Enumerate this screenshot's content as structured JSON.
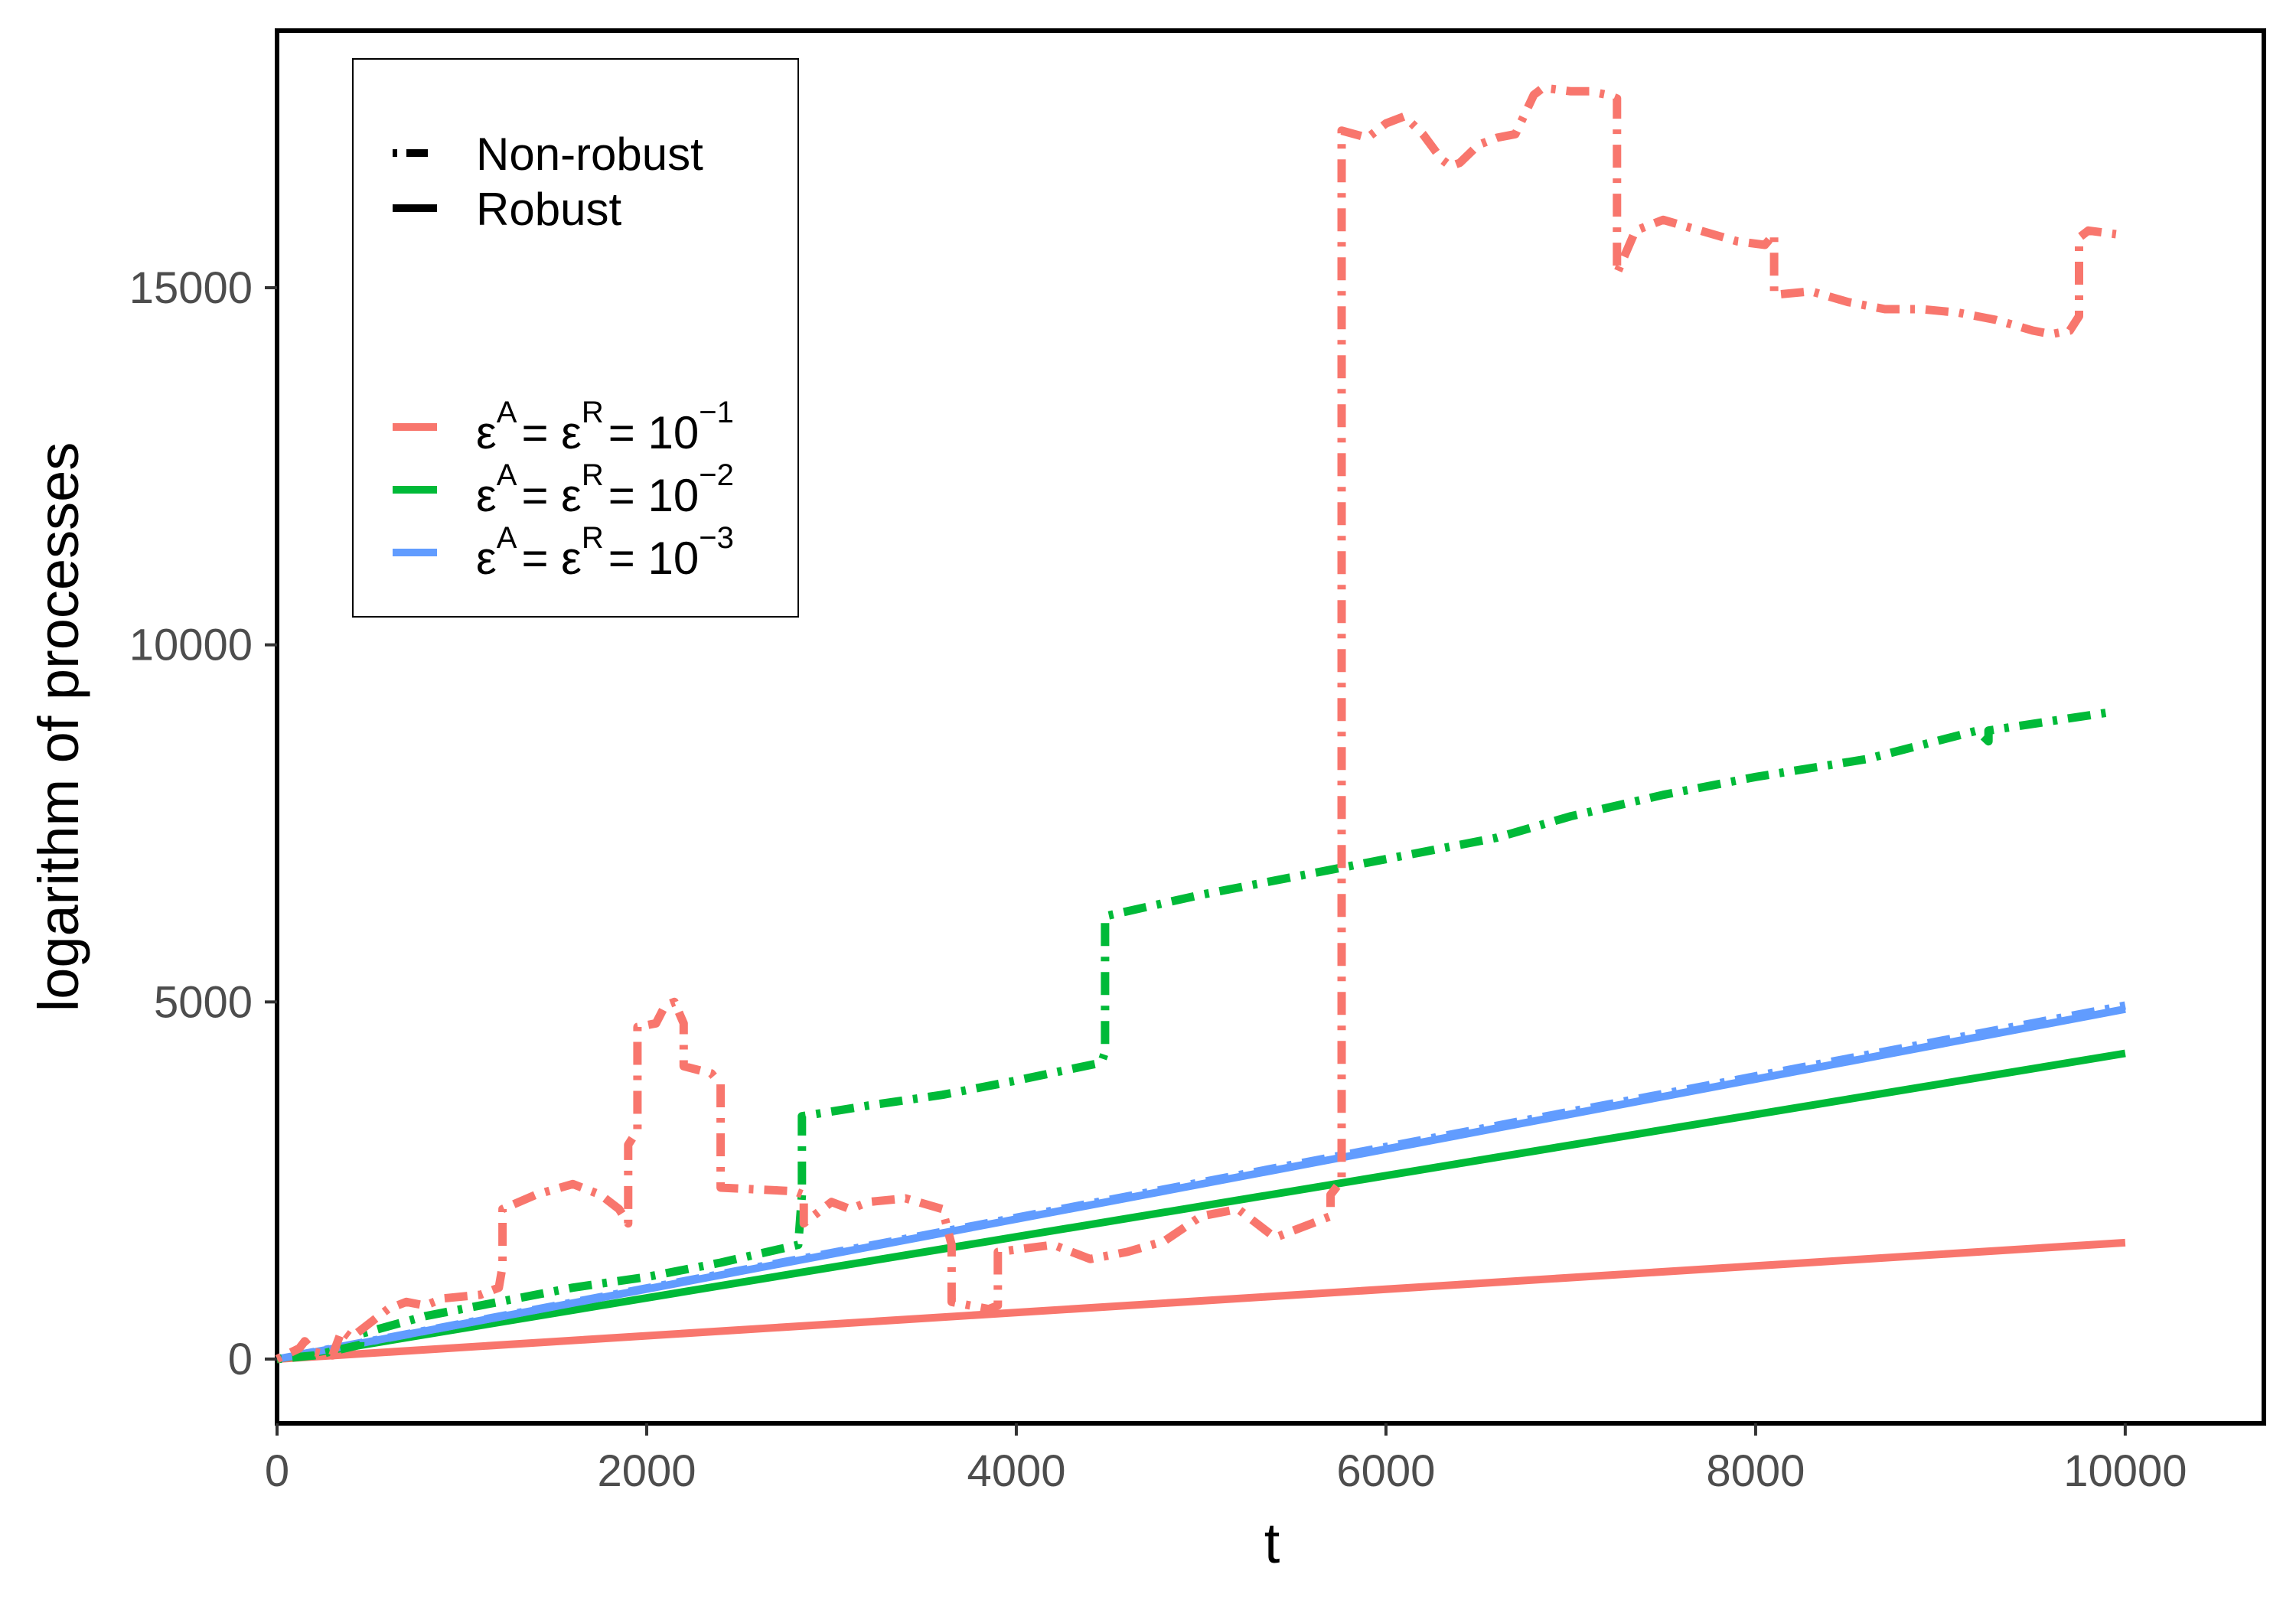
{
  "chart_data": {
    "type": "line",
    "title": "",
    "xlabel": "t",
    "ylabel": "logarithm of processes",
    "xlim": [
      0,
      10750
    ],
    "ylim": [
      -900,
      18600
    ],
    "x_ticks": [
      0,
      2000,
      4000,
      6000,
      8000,
      10000
    ],
    "y_ticks": [
      0,
      5000,
      10000,
      15000
    ],
    "grid": false,
    "legend": {
      "position": "top-left",
      "linetype_entries": [
        {
          "label": "Non-robust",
          "style": "dotdash"
        },
        {
          "label": "Robust",
          "style": "solid"
        }
      ],
      "color_entries": [
        {
          "label": "εA = εR = 10−1",
          "eps_sup_a": "A",
          "eps_sup_r": "R",
          "base": "10",
          "exponent": "−1",
          "color": "#F8766D"
        },
        {
          "label": "εA = εR = 10−2",
          "eps_sup_a": "A",
          "eps_sup_r": "R",
          "base": "10",
          "exponent": "−2",
          "color": "#00BA38"
        },
        {
          "label": "εA = εR = 10−3",
          "eps_sup_a": "A",
          "eps_sup_r": "R",
          "base": "10",
          "exponent": "−3",
          "color": "#619CFF"
        }
      ]
    },
    "series": [
      {
        "name": "Robust εA = εR = 10−1",
        "epsilon": "10−1",
        "style": "solid",
        "color": "#F8766D",
        "x": [
          0,
          10000
        ],
        "y": [
          0,
          1630
        ]
      },
      {
        "name": "Robust εA = εR = 10−2",
        "epsilon": "10−2",
        "style": "solid",
        "color": "#00BA38",
        "x": [
          0,
          10000
        ],
        "y": [
          0,
          4280
        ]
      },
      {
        "name": "Robust εA = εR = 10−3",
        "epsilon": "10−3",
        "style": "solid",
        "color": "#619CFF",
        "x": [
          0,
          10000
        ],
        "y": [
          0,
          4900
        ]
      },
      {
        "name": "Non-robust εA = εR = 10−3",
        "epsilon": "10−3",
        "style": "dotdash",
        "color": "#619CFF",
        "x": [
          0,
          10000
        ],
        "y": [
          0,
          4950
        ]
      },
      {
        "name": "Non-robust εA = εR = 10−2",
        "epsilon": "10−2",
        "style": "dotdash",
        "color": "#00BA38",
        "x": [
          0,
          200,
          450,
          450,
          800,
          1200,
          1600,
          2000,
          2400,
          2820,
          2840,
          2840,
          3200,
          3600,
          4000,
          4460,
          4480,
          4480,
          5000,
          5600,
          6100,
          6600,
          7000,
          7500,
          8000,
          8600,
          9200,
          9260,
          9260,
          9900
        ],
        "y": [
          0,
          50,
          200,
          350,
          600,
          800,
          1000,
          1150,
          1350,
          1600,
          2300,
          3400,
          3550,
          3700,
          3900,
          4150,
          4300,
          6200,
          6500,
          6800,
          7050,
          7300,
          7600,
          7900,
          8150,
          8400,
          8800,
          8650,
          8800,
          9050
        ]
      },
      {
        "name": "Non-robust εA = εR = 10−1",
        "epsilon": "10−1",
        "style": "dotdash",
        "color": "#F8766D",
        "x": [
          0,
          120,
          150,
          200,
          300,
          350,
          400,
          450,
          550,
          600,
          700,
          800,
          900,
          1100,
          1200,
          1220,
          1220,
          1400,
          1600,
          1750,
          1850,
          1900,
          1900,
          1950,
          1950,
          2050,
          2100,
          2150,
          2200,
          2200,
          2350,
          2400,
          2400,
          2800,
          2850,
          2850,
          3000,
          3100,
          3200,
          3400,
          3600,
          3650,
          3650,
          3850,
          3900,
          3900,
          4200,
          4400,
          4600,
          4800,
          5000,
          5200,
          5400,
          5600,
          5700,
          5700,
          5760,
          5760,
          5900,
          6000,
          6100,
          6200,
          6300,
          6350,
          6400,
          6500,
          6600,
          6700,
          6800,
          6850,
          7000,
          7100,
          7200,
          7250,
          7250,
          7350,
          7500,
          7700,
          7900,
          8050,
          8100,
          8100,
          8300,
          8500,
          8700,
          8900,
          9100,
          9300,
          9500,
          9600,
          9700,
          9750,
          9750,
          9800,
          9950
        ],
        "y": [
          0,
          150,
          250,
          100,
          50,
          400,
          300,
          400,
          600,
          700,
          800,
          750,
          850,
          900,
          1000,
          1300,
          2100,
          2300,
          2450,
          2300,
          2100,
          1900,
          3000,
          3200,
          4650,
          4700,
          4950,
          5000,
          4700,
          4100,
          4000,
          3850,
          2400,
          2350,
          2300,
          1900,
          2200,
          2100,
          2200,
          2250,
          2100,
          1600,
          800,
          700,
          750,
          1500,
          1600,
          1400,
          1500,
          1650,
          2000,
          2100,
          1700,
          1900,
          2000,
          2300,
          2500,
          17200,
          17100,
          17300,
          17400,
          17150,
          16800,
          16700,
          16750,
          17000,
          17100,
          17150,
          17700,
          17800,
          17750,
          17750,
          17700,
          17650,
          15200,
          15800,
          15950,
          15800,
          15650,
          15600,
          15750,
          14900,
          14950,
          14800,
          14700,
          14700,
          14650,
          14550,
          14400,
          14350,
          14400,
          14600,
          15700,
          15800,
          15750
        ]
      }
    ]
  }
}
